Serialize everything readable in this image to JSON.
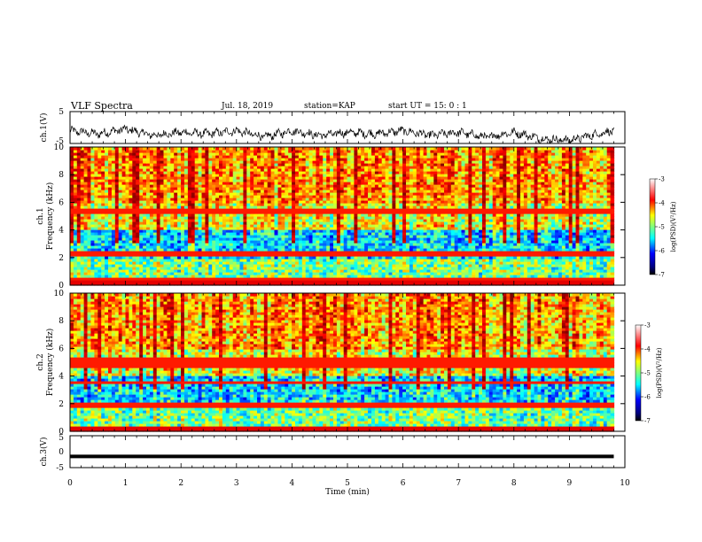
{
  "header": {
    "title": "VLF Spectra",
    "date": "Jul. 18, 2019",
    "station": "station=KAP",
    "start": "start UT =  15: 0  : 1"
  },
  "chart_data": [
    {
      "type": "line",
      "name": "ch1-waveform",
      "ylabel": "ch.1(V)",
      "ylim": [
        -5,
        5
      ],
      "yticks": [
        "5",
        "-5"
      ],
      "xlim": [
        0,
        10
      ],
      "note_values": "visual trace approx. between -4.5 and 1 V",
      "x": [
        0,
        0.5,
        1,
        1.5,
        2,
        2.5,
        3,
        3.5,
        4,
        4.5,
        5,
        5.5,
        6,
        6.5,
        7,
        7.5,
        8,
        8.5,
        9,
        9.5,
        9.8
      ],
      "y": [
        -1,
        -2,
        -0.5,
        -2.5,
        -1.5,
        -2,
        -1,
        -3,
        -1,
        -2.5,
        -1.5,
        -2,
        -1,
        -2.5,
        -1.5,
        -3,
        -1.5,
        -3.5,
        -4,
        -2,
        -1
      ]
    },
    {
      "type": "heatmap",
      "name": "ch1-spectrogram",
      "ylabel": "ch.1\nFrequency (kHz)",
      "ylim": [
        0,
        10
      ],
      "yticks": [
        "0",
        "2",
        "4",
        "6",
        "8",
        "10"
      ],
      "xlim": [
        0,
        10
      ],
      "colorbar": {
        "label": "log(PSD)(V²/Hz)",
        "range": [
          -7,
          -3
        ],
        "ticks": [
          "-3",
          "-4",
          "-5",
          "-6",
          "-7"
        ]
      }
    },
    {
      "type": "heatmap",
      "name": "ch2-spectrogram",
      "ylabel": "ch.2\nFrequency (kHz)",
      "ylim": [
        0,
        10
      ],
      "yticks": [
        "0",
        "2",
        "4",
        "6",
        "8",
        "10"
      ],
      "xlim": [
        0,
        10
      ],
      "colorbar": {
        "label": "log(PSD)(V²/Hz)",
        "range": [
          -7,
          -3
        ],
        "ticks": [
          "-3",
          "-4",
          "-5",
          "-6",
          "-7"
        ]
      }
    },
    {
      "type": "line",
      "name": "ch3-waveform",
      "ylabel": "ch.3(V)",
      "ylim": [
        -5,
        5
      ],
      "yticks": [
        "5",
        "0",
        "-5"
      ],
      "xlim": [
        0,
        10
      ],
      "x": [
        0,
        9.8
      ],
      "y": [
        -1.5,
        -1.5
      ]
    }
  ],
  "xaxis": {
    "label": "Time (min)",
    "ticks": [
      "0",
      "1",
      "2",
      "3",
      "4",
      "5",
      "6",
      "7",
      "8",
      "9",
      "10"
    ]
  },
  "ylabels": {
    "ch1": "ch.1(V)",
    "spec1_a": "ch.1",
    "spec1_b": "Frequency (kHz)",
    "spec2_a": "ch.2",
    "spec2_b": "Frequency (kHz)",
    "ch3": "ch.3(V)"
  },
  "colorbar_label": "log(PSD)(V²/Hz)",
  "colors": {
    "jet": [
      "#00007f",
      "#0000ff",
      "#007fff",
      "#00ffff",
      "#7fff7f",
      "#ffff00",
      "#ff7f00",
      "#ff0000",
      "#7f0000"
    ]
  }
}
